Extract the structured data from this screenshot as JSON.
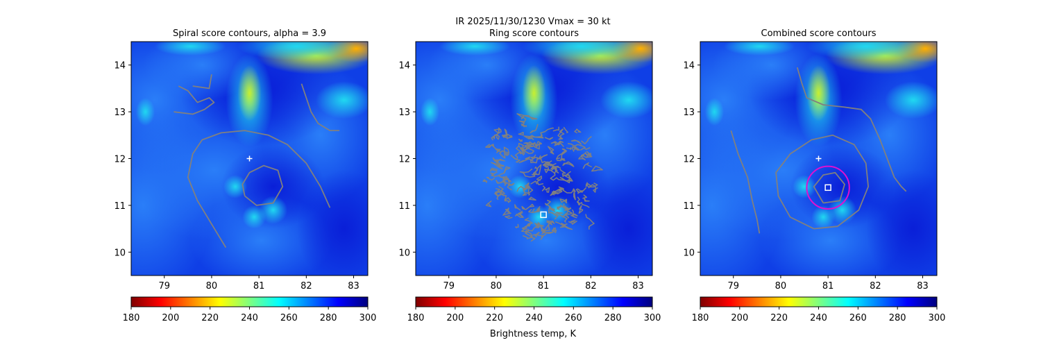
{
  "figure": {
    "suptitle_line1": "IR  2025/11/30/1230    Vmax = 30 kt",
    "colorbar_label": "Brightness temp, K"
  },
  "colors": {
    "contour": "#808080",
    "marker": "#ffffff",
    "ring_circle": "#e010d0",
    "colormap": [
      "#7f0000",
      "#ff0000",
      "#ff7f00",
      "#ffff00",
      "#7fff7f",
      "#00ffff",
      "#007fff",
      "#0000ff",
      "#00007f"
    ]
  },
  "chart_data": [
    {
      "type": "heatmap",
      "title": "Spiral score contours, alpha =  3.9",
      "xlim": [
        78.3,
        83.3
      ],
      "ylim": [
        9.5,
        14.5
      ],
      "xticks": [
        "79",
        "80",
        "81",
        "82",
        "83"
      ],
      "yticks": [
        "10",
        "11",
        "12",
        "13",
        "14"
      ],
      "colorbar": {
        "range": [
          180,
          300
        ],
        "ticks": [
          "180",
          "200",
          "220",
          "240",
          "260",
          "280",
          "300"
        ],
        "colormap": "jet_r"
      },
      "markers": [
        {
          "kind": "plus",
          "lon": 80.8,
          "lat": 12.0
        }
      ],
      "contours": [
        [
          [
            80.3,
            10.1
          ],
          [
            80.0,
            10.6
          ],
          [
            79.7,
            11.1
          ],
          [
            79.5,
            11.6
          ],
          [
            79.6,
            12.1
          ],
          [
            79.8,
            12.4
          ],
          [
            80.2,
            12.55
          ],
          [
            80.7,
            12.6
          ],
          [
            81.2,
            12.5
          ],
          [
            81.6,
            12.3
          ],
          [
            82.0,
            11.9
          ],
          [
            82.3,
            11.4
          ],
          [
            82.5,
            10.95
          ]
        ],
        [
          [
            80.7,
            11.2
          ],
          [
            80.95,
            11.0
          ],
          [
            81.3,
            11.05
          ],
          [
            81.5,
            11.4
          ],
          [
            81.4,
            11.75
          ],
          [
            81.1,
            11.85
          ],
          [
            80.8,
            11.7
          ],
          [
            80.65,
            11.45
          ],
          [
            80.7,
            11.2
          ]
        ],
        [
          [
            79.2,
            13.0
          ],
          [
            79.6,
            12.95
          ],
          [
            79.85,
            13.05
          ],
          [
            80.05,
            13.2
          ],
          [
            79.95,
            13.3
          ],
          [
            79.7,
            13.2
          ],
          [
            79.5,
            13.45
          ],
          [
            79.3,
            13.55
          ]
        ],
        [
          [
            79.6,
            13.55
          ],
          [
            79.95,
            13.5
          ],
          [
            80.0,
            13.8
          ]
        ],
        [
          [
            81.9,
            13.6
          ],
          [
            82.0,
            13.3
          ],
          [
            82.1,
            13.0
          ],
          [
            82.25,
            12.75
          ],
          [
            82.5,
            12.6
          ],
          [
            82.7,
            12.6
          ]
        ]
      ]
    },
    {
      "type": "heatmap",
      "title": "Ring score contours",
      "xlim": [
        78.3,
        83.3
      ],
      "ylim": [
        9.5,
        14.5
      ],
      "xticks": [
        "79",
        "80",
        "81",
        "82",
        "83"
      ],
      "yticks": [
        "10",
        "11",
        "12",
        "13",
        "14"
      ],
      "colorbar": {
        "range": [
          180,
          300
        ],
        "ticks": [
          "180",
          "200",
          "220",
          "240",
          "260",
          "280",
          "300"
        ],
        "colormap": "jet_r"
      },
      "markers": [
        {
          "kind": "square",
          "lon": 81.0,
          "lat": 10.8
        }
      ],
      "contours": [],
      "noisy_contour_region": {
        "center_lon": 80.9,
        "center_lat": 11.6,
        "radius_deg": 1.25
      }
    },
    {
      "type": "heatmap",
      "title": "Combined score contours",
      "xlim": [
        78.3,
        83.3
      ],
      "ylim": [
        9.5,
        14.5
      ],
      "xticks": [
        "79",
        "80",
        "81",
        "82",
        "83"
      ],
      "yticks": [
        "10",
        "11",
        "12",
        "13",
        "14"
      ],
      "colorbar": {
        "range": [
          180,
          300
        ],
        "ticks": [
          "180",
          "200",
          "220",
          "240",
          "260",
          "280",
          "300"
        ],
        "colormap": "jet_r"
      },
      "markers": [
        {
          "kind": "plus",
          "lon": 80.8,
          "lat": 12.0
        },
        {
          "kind": "square",
          "lon": 81.0,
          "lat": 11.38
        },
        {
          "kind": "circle",
          "lon": 81.0,
          "lat": 11.38,
          "radius_deg": 0.45
        }
      ],
      "contours": [
        [
          [
            80.7,
            10.5
          ],
          [
            80.2,
            10.75
          ],
          [
            79.95,
            11.2
          ],
          [
            79.9,
            11.7
          ],
          [
            80.2,
            12.1
          ],
          [
            80.65,
            12.4
          ],
          [
            81.1,
            12.5
          ],
          [
            81.55,
            12.3
          ],
          [
            81.8,
            11.9
          ],
          [
            81.85,
            11.4
          ],
          [
            81.65,
            10.9
          ],
          [
            81.2,
            10.55
          ],
          [
            80.7,
            10.5
          ]
        ],
        [
          [
            80.9,
            11.05
          ],
          [
            81.25,
            11.1
          ],
          [
            81.35,
            11.45
          ],
          [
            81.15,
            11.7
          ],
          [
            80.9,
            11.65
          ],
          [
            80.7,
            11.4
          ],
          [
            80.9,
            11.05
          ]
        ],
        [
          [
            80.35,
            13.95
          ],
          [
            80.45,
            13.6
          ],
          [
            80.55,
            13.3
          ],
          [
            80.9,
            13.15
          ],
          [
            81.35,
            13.1
          ],
          [
            81.7,
            13.05
          ],
          [
            81.9,
            12.85
          ],
          [
            82.1,
            12.4
          ],
          [
            82.25,
            12.0
          ],
          [
            82.4,
            11.6
          ],
          [
            82.55,
            11.4
          ],
          [
            82.65,
            11.3
          ]
        ],
        [
          [
            78.95,
            12.6
          ],
          [
            79.1,
            12.1
          ],
          [
            79.3,
            11.6
          ],
          [
            79.4,
            11.1
          ],
          [
            79.5,
            10.7
          ],
          [
            79.55,
            10.4
          ]
        ]
      ]
    }
  ]
}
